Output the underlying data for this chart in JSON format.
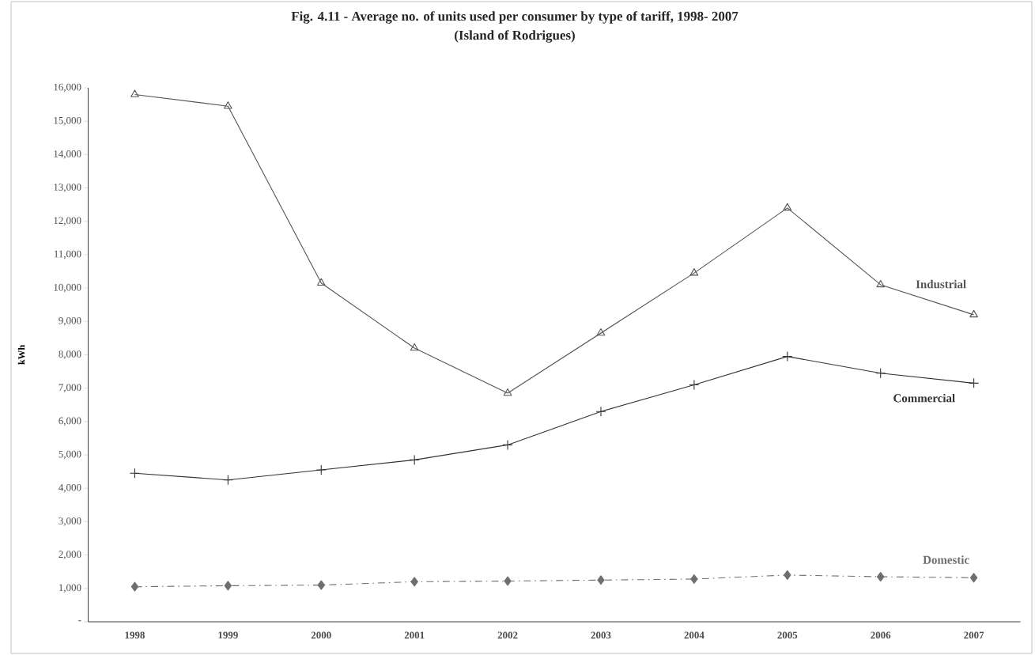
{
  "chart_data": {
    "type": "line",
    "title": "Fig. 4.11 - Average no. of units used per consumer by type of tariff, 1998- 2007",
    "subtitle": "(Island of Rodrigues)",
    "ylabel": "kWh",
    "categories": [
      "1998",
      "1999",
      "2000",
      "2001",
      "2002",
      "2003",
      "2004",
      "2005",
      "2006",
      "2007"
    ],
    "series": [
      {
        "name": "Industrial",
        "color": "#555555",
        "marker": "triangle",
        "line_style": "solid",
        "values": [
          15800,
          15450,
          10150,
          8200,
          6850,
          8650,
          10450,
          12400,
          10100,
          9200
        ]
      },
      {
        "name": "Commercial",
        "color": "#333333",
        "marker": "cross",
        "line_style": "solid",
        "values": [
          4450,
          4250,
          4550,
          4850,
          5300,
          6300,
          7100,
          7950,
          7450,
          7150
        ]
      },
      {
        "name": "Domestic",
        "color": "#6e6e6e",
        "marker": "diamond",
        "line_style": "dashed",
        "values": [
          1050,
          1080,
          1100,
          1200,
          1220,
          1250,
          1280,
          1400,
          1350,
          1320
        ]
      }
    ],
    "ylim": [
      0,
      16000
    ],
    "yticks": [
      {
        "value": 0,
        "label": "-"
      },
      {
        "value": 1000,
        "label": "1,000"
      },
      {
        "value": 2000,
        "label": "2,000"
      },
      {
        "value": 3000,
        "label": "3,000"
      },
      {
        "value": 4000,
        "label": "4,000"
      },
      {
        "value": 5000,
        "label": "5,000"
      },
      {
        "value": 6000,
        "label": "6,000"
      },
      {
        "value": 7000,
        "label": "7,000"
      },
      {
        "value": 8000,
        "label": "8,000"
      },
      {
        "value": 9000,
        "label": "9,000"
      },
      {
        "value": 10000,
        "label": "10,000"
      },
      {
        "value": 11000,
        "label": "11,000"
      },
      {
        "value": 12000,
        "label": "12,000"
      },
      {
        "value": 13000,
        "label": "13,000"
      },
      {
        "value": 14000,
        "label": "14,000"
      },
      {
        "value": 15000,
        "label": "15,000"
      },
      {
        "value": 16000,
        "label": "16,000"
      }
    ],
    "grid": false
  }
}
